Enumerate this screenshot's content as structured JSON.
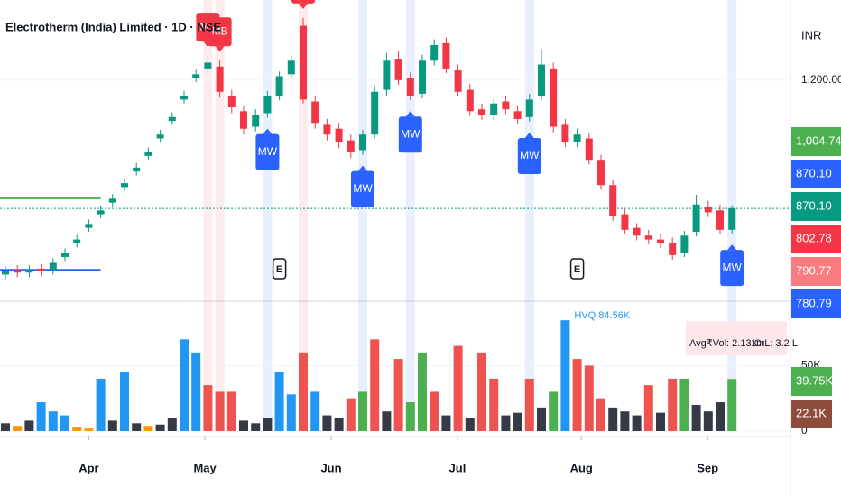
{
  "chart_data": {
    "type": "candlestick",
    "title": "Electrotherm (India) Limited · 1D · NSE",
    "currency": "INR",
    "xticks": [
      {
        "value": 7,
        "label": "Apr"
      },
      {
        "value": 16.75,
        "label": "May"
      },
      {
        "value": 27.35,
        "label": "Jun"
      },
      {
        "value": 37.95,
        "label": "Jul"
      },
      {
        "value": 48.35,
        "label": "Aug"
      },
      {
        "value": 58.95,
        "label": "Sep"
      }
    ],
    "ylim": [
      636,
      1406
    ],
    "yticks": [
      {
        "value": 1200,
        "label": "1,200.00"
      }
    ],
    "up_color": "#089981",
    "down_color": "#f23645",
    "open": [
      700,
      712,
      705,
      715,
      712,
      745,
      780,
      820,
      855,
      885,
      925,
      965,
      1005,
      1050,
      1095,
      1150,
      1205,
      1230,
      1235,
      1160,
      1120,
      1080,
      1115,
      1160,
      1215,
      1340,
      1145,
      1085,
      1075,
      1045,
      1020,
      1060,
      1175,
      1255,
      1205,
      1165,
      1250,
      1295,
      1225,
      1175,
      1125,
      1110,
      1145,
      1120,
      1105,
      1160,
      1230,
      1085,
      1040,
      1050,
      995,
      930,
      855,
      820,
      800,
      790,
      782,
      755,
      810,
      875,
      865,
      815
    ],
    "high": [
      722,
      724,
      724,
      727,
      742,
      767,
      802,
      842,
      877,
      907,
      947,
      987,
      1027,
      1072,
      1117,
      1172,
      1227,
      1262,
      1250,
      1175,
      1135,
      1125,
      1172,
      1222,
      1262,
      1360,
      1160,
      1100,
      1090,
      1060,
      1072,
      1185,
      1270,
      1275,
      1220,
      1265,
      1305,
      1310,
      1240,
      1190,
      1140,
      1152,
      1158,
      1135,
      1165,
      1280,
      1245,
      1100,
      1075,
      1065,
      1008,
      942,
      868,
      832,
      815,
      805,
      795,
      812,
      905,
      890,
      880,
      878
    ],
    "low": [
      688,
      693,
      693,
      696,
      700,
      735,
      770,
      810,
      845,
      875,
      915,
      955,
      995,
      1040,
      1085,
      1140,
      1195,
      1218,
      1155,
      1115,
      1060,
      1068,
      1103,
      1148,
      1203,
      1140,
      1075,
      1045,
      1025,
      1000,
      1008,
      1050,
      1160,
      1188,
      1148,
      1153,
      1238,
      1218,
      1158,
      1108,
      1098,
      1098,
      1113,
      1088,
      1093,
      1148,
      1065,
      1028,
      1028,
      983,
      918,
      838,
      803,
      788,
      778,
      768,
      738,
      745,
      798,
      848,
      803,
      805
    ],
    "close": [
      710,
      705,
      712,
      708,
      730,
      755,
      790,
      830,
      865,
      895,
      935,
      975,
      1015,
      1060,
      1105,
      1160,
      1215,
      1245,
      1170,
      1130,
      1075,
      1110,
      1160,
      1210,
      1250,
      1150,
      1090,
      1060,
      1040,
      1015,
      1060,
      1170,
      1250,
      1200,
      1160,
      1250,
      1290,
      1230,
      1170,
      1120,
      1110,
      1140,
      1125,
      1100,
      1150,
      1240,
      1080,
      1040,
      1060,
      995,
      930,
      850,
      815,
      800,
      790,
      780,
      750,
      800,
      880,
      860,
      815,
      870.1
    ],
    "levels": [
      {
        "value": 896,
        "from": 0,
        "to": 8,
        "color": "#4caf50",
        "dash": false
      },
      {
        "value": 712,
        "from": 0,
        "to": 8,
        "color": "#2962ff",
        "dash": false
      },
      {
        "value": 870.1,
        "from": 0,
        "to": 66,
        "color": "#089981",
        "dash": true
      }
    ],
    "markers": [
      {
        "index": 17,
        "label": "MB",
        "position": "above",
        "color": "#f23645"
      },
      {
        "index": 18,
        "label": "MB",
        "position": "above",
        "color": "#f23645"
      },
      {
        "index": 25,
        "label": "MB",
        "position": "above",
        "color": "#f23645"
      },
      {
        "index": 22,
        "label": "MW",
        "position": "below",
        "color": "#2962ff"
      },
      {
        "index": 30,
        "label": "MW",
        "position": "below",
        "color": "#2962ff"
      },
      {
        "index": 34,
        "label": "MW",
        "position": "below",
        "color": "#2962ff"
      },
      {
        "index": 44,
        "label": "MW",
        "position": "below",
        "color": "#2962ff"
      },
      {
        "index": 61,
        "label": "MW",
        "position": "below",
        "color": "#2962ff"
      }
    ],
    "earnings": [
      {
        "index": 23,
        "label": "E"
      },
      {
        "index": 48,
        "label": "E"
      }
    ],
    "price_tags": [
      {
        "label": "1,004.74",
        "color": "#4caf50"
      },
      {
        "label": "870.10",
        "color": "#2962ff"
      },
      {
        "label": "870.10",
        "color": "#089981"
      },
      {
        "label": "802.78",
        "color": "#f23645"
      },
      {
        "label": "790.77",
        "color": "#f77c80"
      },
      {
        "label": "780.79",
        "color": "#2962ff"
      }
    ],
    "volume": {
      "values": [
        6000,
        4000,
        8000,
        22000,
        15000,
        12000,
        3000,
        2000,
        40000,
        8000,
        45000,
        6000,
        4000,
        5000,
        10000,
        70000,
        60000,
        35000,
        30000,
        30000,
        8000,
        6000,
        10000,
        45000,
        28000,
        60000,
        30000,
        12000,
        10000,
        25000,
        30000,
        70000,
        15000,
        55000,
        22000,
        60000,
        30000,
        12000,
        65000,
        10000,
        60000,
        40000,
        12000,
        14000,
        40000,
        18000,
        30000,
        84560,
        55000,
        50000,
        25000,
        18000,
        15000,
        12000,
        35000,
        14000,
        40000,
        40000,
        20000,
        15000,
        22000,
        39750
      ],
      "color_codes": [
        "k",
        "o",
        "k",
        "b",
        "b",
        "b",
        "o",
        "o",
        "b",
        "k",
        "b",
        "k",
        "o",
        "k",
        "k",
        "b",
        "b",
        "r",
        "r",
        "r",
        "k",
        "k",
        "k",
        "b",
        "b",
        "r",
        "b",
        "k",
        "k",
        "r",
        "g",
        "r",
        "k",
        "r",
        "g",
        "g",
        "r",
        "k",
        "r",
        "k",
        "r",
        "r",
        "k",
        "k",
        "r",
        "k",
        "g",
        "b",
        "r",
        "r",
        "r",
        "k",
        "k",
        "k",
        "r",
        "k",
        "r",
        "g",
        "k",
        "k",
        "k",
        "g"
      ],
      "palette": {
        "k": "#363a45",
        "o": "#ff9800",
        "b": "#2196f3",
        "r": "#ef5350",
        "g": "#4caf50"
      },
      "ylim": [
        0,
        95000
      ],
      "yticks": [
        0,
        {
          "value": 50000,
          "label": "50K"
        }
      ],
      "hvq_label": "HVQ 84.56K",
      "info": [
        "Avg₹Vol: 2.13 Cr",
        "1mL: 3.2 L"
      ],
      "tags": [
        {
          "label": "39.75K",
          "color": "#4caf50"
        },
        {
          "label": "22.1K",
          "color": "#8d4c3c"
        }
      ]
    }
  }
}
